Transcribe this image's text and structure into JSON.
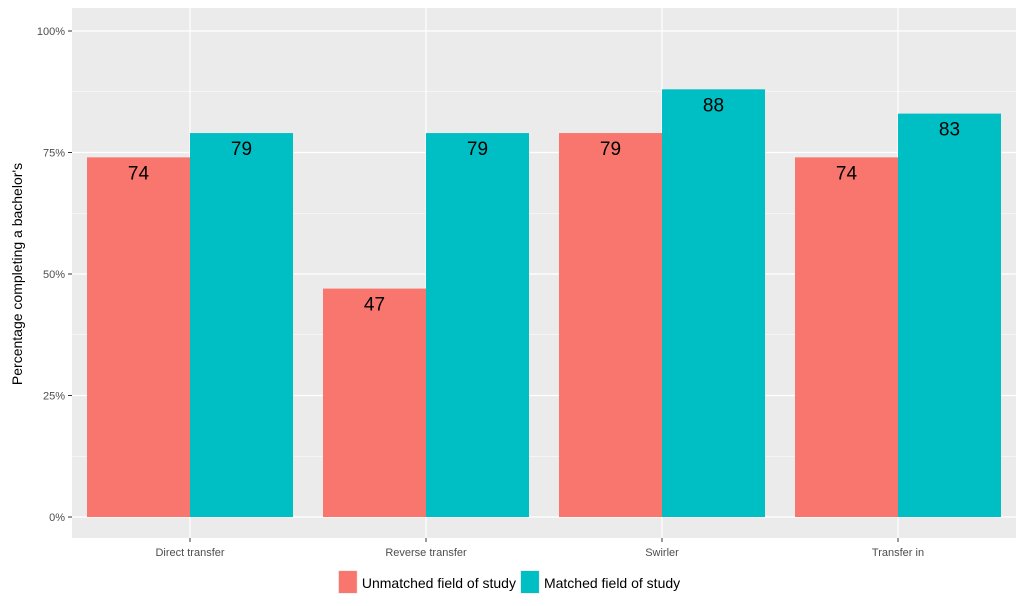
{
  "chart_data": {
    "type": "bar",
    "ylabel": "Percentage completing a bachelor's",
    "xlabel": "",
    "ylim": [
      0,
      100
    ],
    "y_ticks": [
      0,
      25,
      50,
      75,
      100
    ],
    "y_tick_labels": [
      "0%",
      "25%",
      "50%",
      "75%",
      "100%"
    ],
    "categories": [
      "Direct transfer",
      "Reverse transfer",
      "Swirler",
      "Transfer in"
    ],
    "series": [
      {
        "name": "Unmatched field of study",
        "color": "#F8766D",
        "values": [
          74,
          47,
          79,
          74
        ]
      },
      {
        "name": "Matched field of study",
        "color": "#00BFC4",
        "values": [
          79,
          79,
          88,
          83
        ]
      }
    ],
    "grid": true,
    "legend_position": "bottom",
    "panel_background": "#EBEBEB"
  }
}
